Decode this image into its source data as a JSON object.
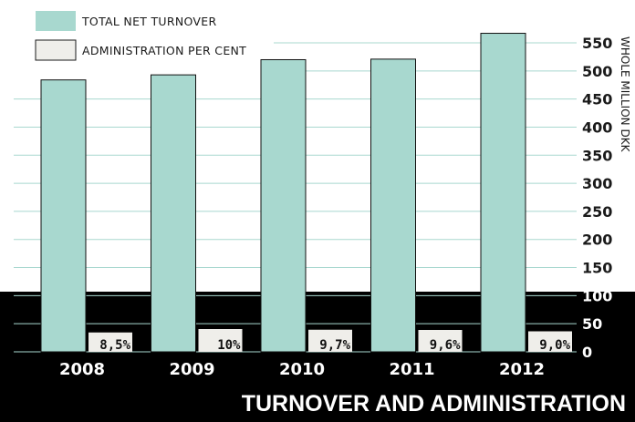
{
  "chart_data": {
    "type": "bar",
    "title": "TURNOVER AND ADMINISTRATION",
    "ylabel": "WHOLE MILLION DKK",
    "categories": [
      "2008",
      "2009",
      "2010",
      "2011",
      "2012"
    ],
    "series": [
      {
        "name": "TOTAL NET TURNOVER",
        "values": [
          484,
          493,
          520,
          521,
          567
        ],
        "color": "#a8d8cf"
      },
      {
        "name": "ADMINISTRATION PER CENT",
        "values": [
          8.5,
          10,
          9.7,
          9.6,
          9.0
        ],
        "labels": [
          "8,5%",
          "10%",
          "9,7%",
          "9,6%",
          "9,0%"
        ],
        "color": "#efeeea"
      }
    ],
    "ylim": [
      0,
      550
    ],
    "yticks": [
      0,
      50,
      100,
      150,
      200,
      250,
      300,
      350,
      400,
      450,
      500,
      550
    ],
    "grid": true,
    "legend_position": "top-left",
    "colors": {
      "band": "#000000",
      "grid": "#a8d8cf",
      "text_dark": "#1a1a1a",
      "text_light": "#ffffff"
    }
  }
}
